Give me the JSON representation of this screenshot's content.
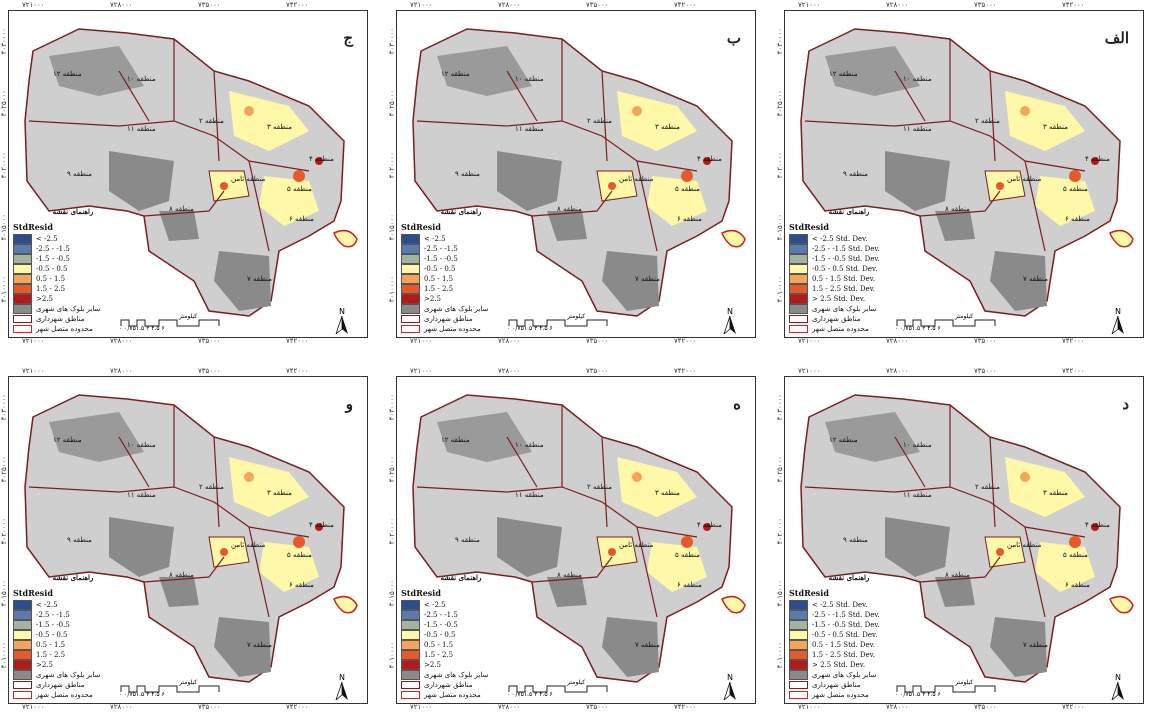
{
  "x_ticks": [
    "۷۲۱۰۰۰",
    "۷۲۸۰۰۰",
    "۷۳۵۰۰۰",
    "۷۴۲۰۰۰"
  ],
  "y_ticks": [
    "۴۰۳۰۰۰۰",
    "۴۰۲۵۰۰۰",
    "۴۰۲۰۰۰۰",
    "۴۰۱۵۰۰۰",
    "۴۰۱۰۰۰۰"
  ],
  "zone_labels": [
    "منطقه ۱۲",
    "منطقه ۱۰",
    "منطقه ۱۱",
    "منطقه ۲",
    "منطقه ۳",
    "منطقه ۴",
    "منطقه ۹",
    "منطقه ثامن",
    "منطقه ۵",
    "منطقه ۸",
    "منطقه ۶",
    "منطقه ۷"
  ],
  "legend_title": "راهنمای نقشه",
  "legend_var": "StdResid",
  "scale_label": "کیلومتر",
  "scale_numbers": "۰ ۰/۷۵۱.۵  ۳  ۴.۵  ۶",
  "north": "N",
  "panels": [
    {
      "label": "ج",
      "colors": [
        "#2b4d8f",
        "#5a7bb0",
        "#a3b3a0",
        "#fff8a8",
        "#f5a45c",
        "#e65a2a",
        "#b81818"
      ],
      "entries": [
        "< -2.5",
        "-2.5 - -1.5",
        "-1.5 - -0.5",
        "-0.5 - 0.5",
        "0.5 - 1.5",
        "1.5 - 2.5",
        ">2.5"
      ]
    },
    {
      "label": "ب",
      "colors": [
        "#2b4d8f",
        "#5a7bb0",
        "#a3b3a0",
        "#fff8a8",
        "#f5a45c",
        "#e65a2a",
        "#b81818"
      ],
      "entries": [
        "< -2.5",
        "-2.5 - -1.5",
        "-1.5 - -0.5",
        "-0.5 - 0.5",
        "0.5 - 1.5",
        "1.5 - 2.5",
        ">2.5"
      ]
    },
    {
      "label": "الف",
      "colors": [
        "#2b4d8f",
        "#5a7bb0",
        "#a3b3a0",
        "#fff8a8",
        "#f5a45c",
        "#e65a2a",
        "#b81818"
      ],
      "entries": [
        "< -2.5 Std. Dev.",
        "-2.5 - -1.5 Std. Dev.",
        "-1.5 - -0.5 Std. Dev.",
        "-0.5 - 0.5 Std. Dev.",
        "0.5 - 1.5 Std. Dev.",
        "1.5 - 2.5 Std. Dev.",
        "> 2.5 Std. Dev."
      ]
    },
    {
      "label": "و",
      "colors": [
        "#2b4d8f",
        "#5a7bb0",
        "#a3b3a0",
        "#fff8a8",
        "#f5a45c",
        "#e65a2a",
        "#b81818"
      ],
      "entries": [
        "< -2.5",
        "-2.5 - -1.5",
        "-1.5 - -0.5",
        "-0.5 - 0.5",
        "0.5 - 1.5",
        "1.5 - 2.5",
        ">2.5"
      ]
    },
    {
      "label": "ه",
      "colors": [
        "#2b4d8f",
        "#5a7bb0",
        "#a3b3a0",
        "#fff8a8",
        "#f5a45c",
        "#e65a2a",
        "#b81818"
      ],
      "entries": [
        "< -2.5",
        "-2.5 - -1.5",
        "-1.5 - -0.5",
        "-0.5 - 0.5",
        "0.5 - 1.5",
        "1.5 - 2.5",
        ">2.5"
      ]
    },
    {
      "label": "د",
      "colors": [
        "#2b4d8f",
        "#5a7bb0",
        "#a3b3a0",
        "#fff8a8",
        "#f5a45c",
        "#e65a2a",
        "#b81818"
      ],
      "entries": [
        "< -2.5 Std. Dev.",
        "-2.5 - -1.5 Std. Dev.",
        "-1.5 - -0.5 Std. Dev.",
        "-0.5 - 0.5 Std. Dev.",
        "0.5 - 1.5 Std. Dev.",
        "1.5 - 2.5 Std. Dev.",
        "> 2.5 Std. Dev."
      ]
    }
  ],
  "extra_legend": [
    "سایر بلوک های شهری",
    "مناطق شهرداری",
    "محدوده متصل شهر"
  ],
  "extra_colors": [
    "#8a8a8a"
  ]
}
